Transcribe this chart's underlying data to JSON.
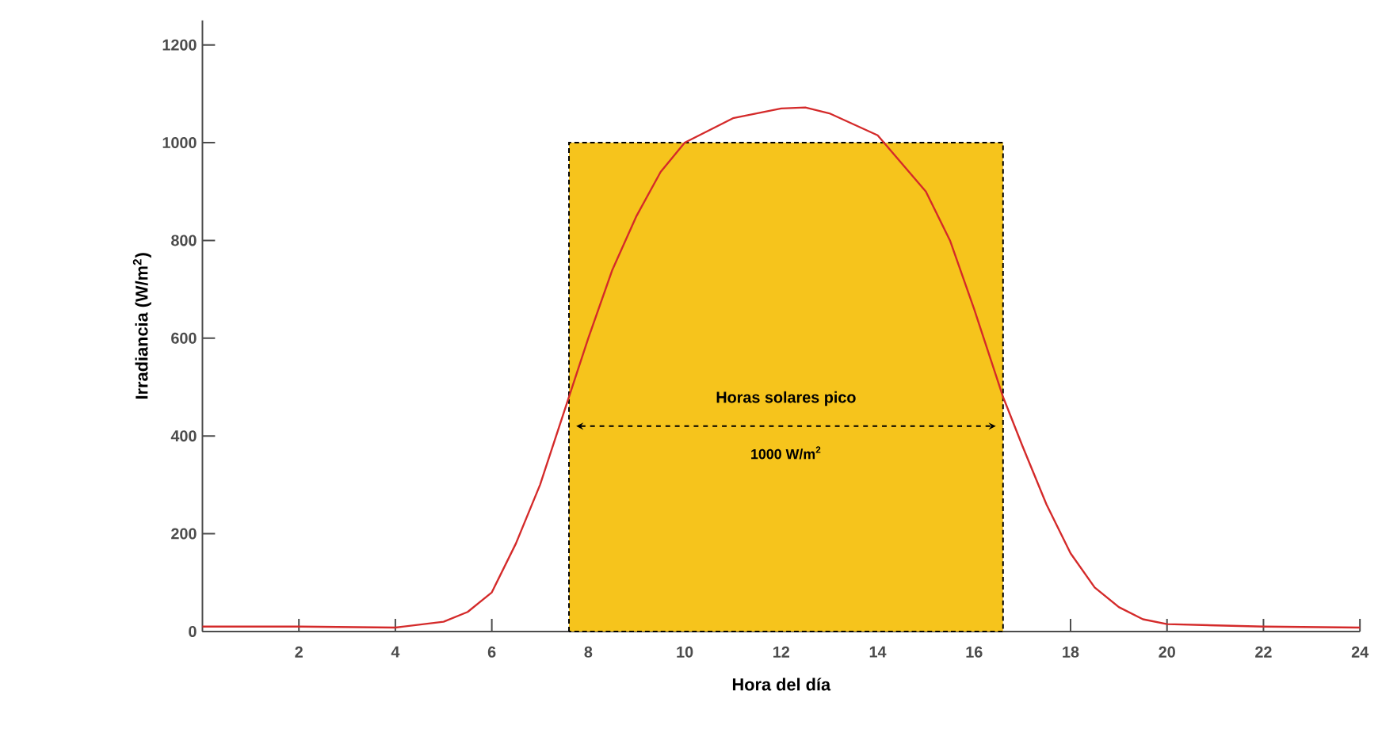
{
  "chart_data": {
    "type": "line",
    "xlabel": "Hora del día",
    "ylabel": "Irradiancia  (W/m$^{2}$)",
    "x": [
      0,
      2,
      4,
      5,
      5.5,
      6,
      6.5,
      7,
      7.5,
      8,
      8.5,
      9,
      9.5,
      10,
      11,
      12,
      12.5,
      13,
      14,
      15,
      15.5,
      16,
      16.6,
      17,
      17.5,
      18,
      18.5,
      19,
      19.5,
      20,
      22,
      24
    ],
    "series": [
      {
        "color": "#d42a2a",
        "values": [
          10,
          10,
          8,
          20,
          40,
          80,
          180,
          300,
          450,
          600,
          740,
          850,
          940,
          1000,
          1050,
          1070,
          1072,
          1060,
          1015,
          900,
          800,
          660,
          480,
          380,
          260,
          160,
          90,
          50,
          25,
          15,
          10,
          8
        ]
      }
    ],
    "xlim": [
      0,
      24
    ],
    "ylim": [
      0,
      1250
    ],
    "xticks": [
      2,
      4,
      6,
      8,
      10,
      12,
      14,
      16,
      18,
      20,
      22,
      24
    ],
    "yticks": [
      0,
      200,
      400,
      600,
      800,
      1000,
      1200
    ],
    "bands": [
      {
        "axis": "x",
        "from": 7.6,
        "to": 16.6,
        "label": "Horas solares pico",
        "color": "#f6c41c"
      }
    ],
    "annotations": [
      "1000 W/m$^{2}$"
    ],
    "grid": false,
    "marker": "none",
    "line_style": "solid"
  }
}
